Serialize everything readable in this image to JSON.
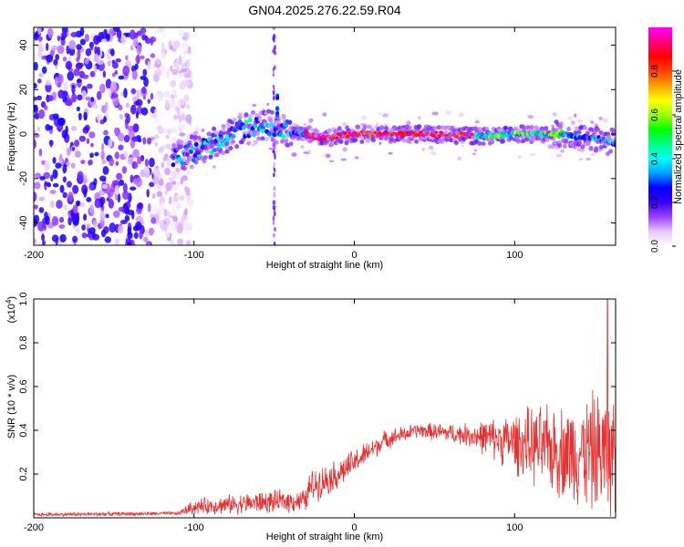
{
  "title": "GN04.2025.276.22.59.R04",
  "chart_data": [
    {
      "type": "heatmap",
      "xlabel": "Height of straight line (km)",
      "ylabel": "Frequency (Hz)",
      "xlim": [
        -200,
        163
      ],
      "ylim": [
        -50,
        48
      ],
      "xticks": [
        "-200",
        "-100",
        "0",
        "100"
      ],
      "yticks": [
        "-40",
        "-20",
        "0",
        "20",
        "40"
      ],
      "colorbar": {
        "label": "Normalized spectral amplitude",
        "range": [
          0,
          1
        ],
        "ticks": [
          "0.0",
          "0.2",
          "0.4",
          "0.6",
          "0.8"
        ],
        "colors": [
          "#ffffff",
          "#e6c8ff",
          "#a040ff",
          "#3a00ff",
          "#0000ff",
          "#00a0ff",
          "#00ffff",
          "#00ff80",
          "#00ff00",
          "#a0ff00",
          "#ffff00",
          "#ffa000",
          "#ff4000",
          "#ff0000",
          "#ff0080",
          "#ff00ff"
        ]
      },
      "features": {
        "noise_region_x": [
          -200,
          -112
        ],
        "signal_track": [
          {
            "x": -112,
            "f": -10
          },
          {
            "x": -100,
            "f": -8
          },
          {
            "x": -85,
            "f": -3
          },
          {
            "x": -70,
            "f": 2
          },
          {
            "x": -55,
            "f": 4
          },
          {
            "x": -45,
            "f": 2
          },
          {
            "x": -30,
            "f": 0
          },
          {
            "x": -20,
            "f": -2
          },
          {
            "x": 0,
            "f": 0
          },
          {
            "x": 50,
            "f": 0
          },
          {
            "x": 80,
            "f": -1
          },
          {
            "x": 100,
            "f": 0
          },
          {
            "x": 130,
            "f": 0
          },
          {
            "x": 150,
            "f": -2
          },
          {
            "x": 163,
            "f": -4
          }
        ],
        "peak_segment_x": [
          -30,
          75
        ],
        "vertical_spike_x": -50,
        "spike_peak_f": 18
      }
    },
    {
      "type": "line",
      "xlabel": "Height of straight line (km)",
      "ylabel": "SNR (10 * v/v)",
      "yscale_label": "(x10",
      "yscale_exp": "4",
      "ylabel_suffix": ")",
      "xlim": [
        -200,
        163
      ],
      "ylim": [
        0,
        1.0
      ],
      "xticks": [
        "-200",
        "-100",
        "0",
        "100"
      ],
      "yticks": [
        "0.2",
        "0.4",
        "0.6",
        "0.8",
        "1.0"
      ],
      "color": "#e83030",
      "envelope": [
        {
          "x": -200,
          "mean": 0.015,
          "amp": 0.01
        },
        {
          "x": -110,
          "mean": 0.02,
          "amp": 0.01
        },
        {
          "x": -100,
          "mean": 0.05,
          "amp": 0.04
        },
        {
          "x": -60,
          "mean": 0.07,
          "amp": 0.06
        },
        {
          "x": -30,
          "mean": 0.08,
          "amp": 0.06
        },
        {
          "x": -28,
          "mean": 0.14,
          "amp": 0.09
        },
        {
          "x": -10,
          "mean": 0.2,
          "amp": 0.08
        },
        {
          "x": 20,
          "mean": 0.36,
          "amp": 0.05
        },
        {
          "x": 40,
          "mean": 0.4,
          "amp": 0.04
        },
        {
          "x": 70,
          "mean": 0.38,
          "amp": 0.06
        },
        {
          "x": 90,
          "mean": 0.36,
          "amp": 0.12
        },
        {
          "x": 110,
          "mean": 0.33,
          "amp": 0.2
        },
        {
          "x": 130,
          "mean": 0.3,
          "amp": 0.25
        },
        {
          "x": 150,
          "mean": 0.3,
          "amp": 0.32
        },
        {
          "x": 163,
          "mean": 0.28,
          "amp": 0.36
        }
      ],
      "max_value": 1.0,
      "max_at_x": 158
    }
  ]
}
